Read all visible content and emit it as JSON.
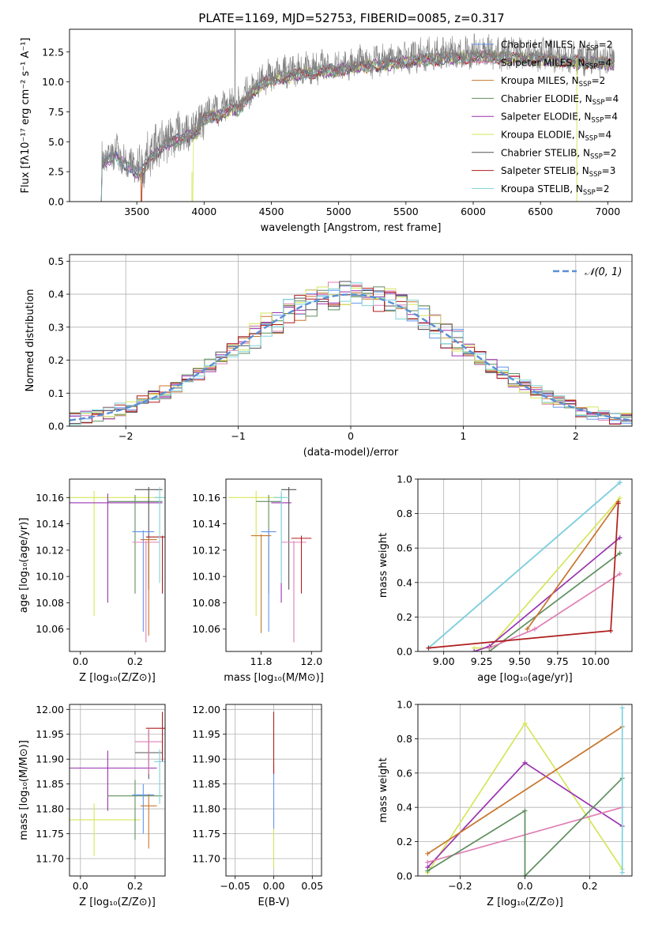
{
  "figure": {
    "title": "PLATE=1169, MJD=52753, FIBERID=0085, z=0.317"
  },
  "colors": {
    "chabrier_miles": "#6495ed",
    "salpeter_miles": "#e07fb5",
    "kroupa_miles": "#c8762e",
    "chabrier_elodie": "#5f8f5f",
    "salpeter_elodie": "#9a32b0",
    "kroupa_elodie": "#d6e65a",
    "chabrier_stelib": "#555555",
    "salpeter_stelib": "#b01c1c",
    "kroupa_stelib": "#7fd3dc",
    "normal": "#5a8fd6"
  },
  "chart_data": [
    {
      "id": "spectrum",
      "type": "line",
      "title": "PLATE=1169, MJD=52753, FIBERID=0085, z=0.317",
      "xlabel": "wavelength [Angstrom, rest frame]",
      "ylabel_base": "Flux [f",
      "ylabel": "Flux [fλ10⁻¹⁷ erg cm⁻² s⁻¹ A⁻¹]",
      "xlim": [
        3000,
        7180
      ],
      "ylim": [
        0,
        14.4
      ],
      "xticks": [
        3500,
        4000,
        4500,
        5000,
        5500,
        6000,
        6500,
        7000
      ],
      "yticks": [
        0.0,
        2.5,
        5.0,
        7.5,
        10.0,
        12.5
      ],
      "ytick_labels": [
        "0.0",
        "2.5",
        "5.0",
        "7.5",
        "10.0",
        "12.5"
      ],
      "grid": false,
      "legend_position": "top-right",
      "observed_envelope": {
        "x": [
          3230,
          3300,
          3350,
          3400,
          3450,
          3500,
          3550,
          3600,
          3650,
          3700,
          3750,
          3800,
          3850,
          3900,
          3950,
          4000,
          4050,
          4100,
          4150,
          4200,
          4250,
          4300,
          4350,
          4400,
          4450,
          4500,
          4600,
          4700,
          4800,
          4900,
          5000,
          5100,
          5200,
          5300,
          5400,
          5500,
          5600,
          5700,
          5800,
          5900,
          6000,
          6100,
          6200,
          6300,
          6400,
          6500,
          6600,
          6700,
          6800,
          6900,
          7000,
          7050
        ],
        "y": [
          3.5,
          4.0,
          4.2,
          3.5,
          3.2,
          2.8,
          3.0,
          4.2,
          4.5,
          5.0,
          5.3,
          5.5,
          5.8,
          6.0,
          6.2,
          7.3,
          7.6,
          7.5,
          7.8,
          8.2,
          8.0,
          8.8,
          9.4,
          10.0,
          10.3,
          10.6,
          10.8,
          11.0,
          11.2,
          11.3,
          11.4,
          11.6,
          11.7,
          11.8,
          11.9,
          12.1,
          12.2,
          12.3,
          12.4,
          12.4,
          12.5,
          12.5,
          12.4,
          12.4,
          12.3,
          12.3,
          12.2,
          12.1,
          12.0,
          12.0,
          11.9,
          11.8
        ]
      },
      "model_series": [
        {
          "name": "Chabrier MILES, N",
          "sub": "SSP",
          "eq": "=2",
          "color": "#6495ed"
        },
        {
          "name": "Salpeter MILES, N",
          "sub": "SSP",
          "eq": "=4",
          "color": "#e07fb5"
        },
        {
          "name": "Kroupa MILES, N",
          "sub": "SSP",
          "eq": "=2",
          "color": "#c8762e"
        },
        {
          "name": "Chabrier ELODIE, N",
          "sub": "SSP",
          "eq": "=4",
          "color": "#5f8f5f"
        },
        {
          "name": "Salpeter ELODIE, N",
          "sub": "SSP",
          "eq": "=4",
          "color": "#9a32b0"
        },
        {
          "name": "Kroupa ELODIE, N",
          "sub": "SSP",
          "eq": "=4",
          "color": "#d6e65a"
        },
        {
          "name": "Chabrier STELIB, N",
          "sub": "SSP",
          "eq": "=2",
          "color": "#555555"
        },
        {
          "name": "Salpeter STELIB, N",
          "sub": "SSP",
          "eq": "=3",
          "color": "#b01c1c"
        },
        {
          "name": "Kroupa STELIB, N",
          "sub": "SSP",
          "eq": "=2",
          "color": "#7fd3dc"
        }
      ]
    },
    {
      "id": "residuals",
      "type": "step",
      "xlabel": "(data-model)/error",
      "ylabel": "Normed distribution",
      "xlim": [
        -2.5,
        2.5
      ],
      "ylim": [
        0,
        0.52
      ],
      "xticks": [
        -2,
        -1,
        0,
        1,
        2
      ],
      "xtick_labels": [
        "−2",
        "−1",
        "0",
        "1",
        "2"
      ],
      "yticks": [
        0.0,
        0.1,
        0.2,
        0.3,
        0.4,
        0.5
      ],
      "ytick_labels": [
        "0.0",
        "0.1",
        "0.2",
        "0.3",
        "0.4",
        "0.5"
      ],
      "grid": true,
      "legend_position": "top-right",
      "bin_width": 0.1,
      "normal_curve": {
        "name": "𝒩(0, 1)",
        "mean": 0,
        "sigma": 1
      }
    },
    {
      "id": "age_vs_Z",
      "type": "errorbar",
      "xlabel": "Z [log₁₀(Z/Z⊙)]",
      "ylabel": "age  [log₁₀(age/yr)]",
      "xlim": [
        -0.04,
        0.31
      ],
      "ylim": [
        10.043,
        10.174
      ],
      "xticks": [
        0.0,
        0.2
      ],
      "xtick_labels": [
        "0.0",
        "0.2"
      ],
      "yticks": [
        10.06,
        10.08,
        10.1,
        10.12,
        10.14,
        10.16
      ],
      "ytick_labels": [
        "10.06",
        "10.08",
        "10.10",
        "10.12",
        "10.14",
        "10.16"
      ],
      "grid": false,
      "points": [
        {
          "series": "Kroupa ELODIE",
          "x": 0.05,
          "xerr": 0.33,
          "y": 10.16,
          "ylo": 10.07,
          "yhi": 10.165
        },
        {
          "series": "Salpeter ELODIE",
          "x": 0.1,
          "xerr": 0.2,
          "y": 10.156,
          "ylo": 10.08,
          "yhi": 10.163
        },
        {
          "series": "Chabrier ELODIE",
          "x": 0.2,
          "xerr": 0.1,
          "y": 10.157,
          "ylo": 10.087,
          "yhi": 10.162
        },
        {
          "series": "Chabrier STELIB",
          "x": 0.25,
          "xerr": 0.05,
          "y": 10.166,
          "ylo": 10.09,
          "yhi": 10.168
        },
        {
          "series": "Chabrier MILES",
          "x": 0.23,
          "xerr": 0.04,
          "y": 10.134,
          "ylo": 10.058,
          "yhi": 10.135
        },
        {
          "series": "Salpeter MILES",
          "x": 0.24,
          "xerr": 0.05,
          "y": 10.126,
          "ylo": 10.05,
          "yhi": 10.127
        },
        {
          "series": "Kroupa MILES",
          "x": 0.25,
          "xerr": 0.03,
          "y": 10.128,
          "ylo": 10.055,
          "yhi": 10.129
        },
        {
          "series": "Salpeter STELIB",
          "x": 0.3,
          "xerr": 0.06,
          "y": 10.13,
          "ylo": 10.087,
          "yhi": 10.131
        },
        {
          "series": "Kroupa STELIB",
          "x": 0.29,
          "xerr": 0.02,
          "y": 10.16,
          "ylo": 10.095,
          "yhi": 10.168
        }
      ]
    },
    {
      "id": "age_vs_mass",
      "type": "errorbar",
      "xlabel": "mass [log₁₀(M/M⊙)]",
      "ylabel": "",
      "xlim": [
        11.66,
        12.04
      ],
      "ylim": [
        10.043,
        10.174
      ],
      "xticks": [
        11.8,
        12.0
      ],
      "xtick_labels": [
        "11.8",
        "12.0"
      ],
      "yticks": [
        10.06,
        10.08,
        10.1,
        10.12,
        10.14,
        10.16
      ],
      "ytick_labels": [
        "10.06",
        "10.08",
        "10.10",
        "10.12",
        "10.14",
        "10.16"
      ],
      "grid": false,
      "points": [
        {
          "series": "Kroupa ELODIE",
          "x": 11.78,
          "xerr": 0.11,
          "y": 10.16,
          "ylo": 10.07,
          "yhi": 10.165
        },
        {
          "series": "Salpeter ELODIE",
          "x": 11.88,
          "xerr": 0.04,
          "y": 10.156,
          "ylo": 10.08,
          "yhi": 10.163
        },
        {
          "series": "Chabrier ELODIE",
          "x": 11.83,
          "xerr": 0.05,
          "y": 10.157,
          "ylo": 10.087,
          "yhi": 10.162
        },
        {
          "series": "Chabrier STELIB",
          "x": 11.91,
          "xerr": 0.03,
          "y": 10.166,
          "ylo": 10.09,
          "yhi": 10.168
        },
        {
          "series": "Chabrier MILES",
          "x": 11.83,
          "xerr": 0.03,
          "y": 10.134,
          "ylo": 10.058,
          "yhi": 10.135
        },
        {
          "series": "Salpeter MILES",
          "x": 11.93,
          "xerr": 0.05,
          "y": 10.126,
          "ylo": 10.05,
          "yhi": 10.127
        },
        {
          "series": "Kroupa MILES",
          "x": 11.8,
          "xerr": 0.04,
          "y": 10.131,
          "ylo": 10.057,
          "yhi": 10.132
        },
        {
          "series": "Salpeter STELIB",
          "x": 11.96,
          "xerr": 0.04,
          "y": 10.129,
          "ylo": 10.087,
          "yhi": 10.131
        },
        {
          "series": "Kroupa STELIB",
          "x": 11.88,
          "xerr": 0.03,
          "y": 10.16,
          "ylo": 10.095,
          "yhi": 10.165
        }
      ]
    },
    {
      "id": "weight_vs_age",
      "type": "line",
      "xlabel": "age  [log₁₀(age/yr)]",
      "ylabel": "mass weight",
      "xlim": [
        8.83,
        10.24
      ],
      "ylim": [
        0,
        1.0
      ],
      "xticks": [
        9.0,
        9.25,
        9.5,
        9.75,
        10.0
      ],
      "xtick_labels": [
        "9.00",
        "9.25",
        "9.50",
        "9.75",
        "10.00"
      ],
      "yticks": [
        0.0,
        0.2,
        0.4,
        0.6,
        0.8,
        1.0
      ],
      "ytick_labels": [
        "0.0",
        "0.2",
        "0.4",
        "0.6",
        "0.8",
        "1.0"
      ],
      "grid": true,
      "series": [
        {
          "name": "Chabrier MILES",
          "x": [
            8.9,
            10.16
          ],
          "y": [
            0.02,
            0.98
          ]
        },
        {
          "name": "Kroupa STELIB",
          "x": [
            8.9,
            10.16
          ],
          "y": [
            0.02,
            0.98
          ]
        },
        {
          "name": "Kroupa ELODIE",
          "x": [
            9.2,
            9.3,
            10.16
          ],
          "y": [
            0.02,
            0.02,
            0.89
          ]
        },
        {
          "name": "Salpeter ELODIE",
          "x": [
            9.2,
            9.3,
            10.16
          ],
          "y": [
            0.0,
            0.03,
            0.66
          ]
        },
        {
          "name": "Chabrier ELODIE",
          "x": [
            9.3,
            10.16
          ],
          "y": [
            0.0,
            0.57
          ]
        },
        {
          "name": "Salpeter MILES",
          "x": [
            9.3,
            9.6,
            10.16
          ],
          "y": [
            0.02,
            0.13,
            0.45
          ]
        },
        {
          "name": "Kroupa MILES",
          "x": [
            9.55,
            10.15
          ],
          "y": [
            0.13,
            0.87
          ]
        },
        {
          "name": "Salpeter STELIB",
          "x": [
            8.9,
            10.1,
            10.15
          ],
          "y": [
            0.02,
            0.12,
            0.86
          ]
        }
      ]
    },
    {
      "id": "mass_vs_Z",
      "type": "errorbar",
      "xlabel": "Z [log₁₀(Z/Z⊙)]",
      "ylabel": "mass [log₁₀(M/M⊙)]",
      "xlim": [
        -0.04,
        0.31
      ],
      "ylim": [
        11.665,
        12.01
      ],
      "xticks": [
        0.0,
        0.2
      ],
      "xtick_labels": [
        "0.0",
        "0.2"
      ],
      "yticks": [
        11.7,
        11.75,
        11.8,
        11.85,
        11.9,
        11.95,
        12.0
      ],
      "ytick_labels": [
        "11.70",
        "11.75",
        "11.80",
        "11.85",
        "11.90",
        "11.95",
        "12.00"
      ],
      "grid": true,
      "points": [
        {
          "series": "Kroupa ELODIE",
          "x": 0.05,
          "xerr": 0.17,
          "y": 11.778,
          "ylo": 11.705,
          "yhi": 11.811
        },
        {
          "series": "Salpeter ELODIE",
          "x": 0.1,
          "xerr": 0.18,
          "y": 11.882,
          "ylo": 11.796,
          "yhi": 11.917
        },
        {
          "series": "Chabrier ELODIE",
          "x": 0.2,
          "xerr": 0.1,
          "y": 11.826,
          "ylo": 11.738,
          "yhi": 11.858
        },
        {
          "series": "Chabrier STELIB",
          "x": 0.25,
          "xerr": 0.05,
          "y": 11.913,
          "ylo": 11.86,
          "yhi": 11.96
        },
        {
          "series": "Chabrier MILES",
          "x": 0.23,
          "xerr": 0.04,
          "y": 11.828,
          "ylo": 11.75,
          "yhi": 11.85
        },
        {
          "series": "Salpeter MILES",
          "x": 0.25,
          "xerr": 0.05,
          "y": 11.935,
          "ylo": 11.87,
          "yhi": 11.96
        },
        {
          "series": "Kroupa MILES",
          "x": 0.25,
          "xerr": 0.03,
          "y": 11.806,
          "ylo": 11.72,
          "yhi": 11.83
        },
        {
          "series": "Salpeter STELIB",
          "x": 0.3,
          "xerr": 0.06,
          "y": 11.962,
          "ylo": 11.895,
          "yhi": 11.995
        },
        {
          "series": "Kroupa STELIB",
          "x": 0.29,
          "xerr": 0.02,
          "y": 11.895,
          "ylo": 11.81,
          "yhi": 11.92
        }
      ]
    },
    {
      "id": "mass_vs_ebv",
      "type": "errorbar",
      "xlabel": "E(B-V)",
      "ylabel": "",
      "xlim": [
        -0.062,
        0.062
      ],
      "ylim": [
        11.665,
        12.01
      ],
      "xticks": [
        -0.05,
        0.0,
        0.05
      ],
      "xtick_labels": [
        "−0.05",
        "0.00",
        "0.05"
      ],
      "yticks": [
        11.7,
        11.75,
        11.8,
        11.85,
        11.9,
        11.95,
        12.0
      ],
      "ytick_labels": [
        "11.70",
        "11.75",
        "11.80",
        "11.85",
        "11.90",
        "11.95",
        "12.00"
      ],
      "grid": true,
      "points": [
        {
          "series": "Kroupa ELODIE",
          "x": 0.0,
          "xerr": 0.0,
          "y": 11.778,
          "ylo": 11.68,
          "yhi": 11.811
        },
        {
          "series": "Chabrier MILES",
          "x": 0.0,
          "xerr": 0.0,
          "y": 11.828,
          "ylo": 11.76,
          "yhi": 11.89
        },
        {
          "series": "Salpeter STELIB",
          "x": 0.0,
          "xerr": 0.0,
          "y": 11.962,
          "ylo": 11.87,
          "yhi": 11.995
        }
      ]
    },
    {
      "id": "weight_vs_Z",
      "type": "line",
      "xlabel": "Z [log₁₀(Z/Z⊙)]",
      "ylabel": "mass weight",
      "xlim": [
        -0.33,
        0.33
      ],
      "ylim": [
        0,
        1.0
      ],
      "xticks": [
        -0.2,
        0.0,
        0.2
      ],
      "xtick_labels": [
        "−0.2",
        "0.0",
        "0.2"
      ],
      "yticks": [
        0.0,
        0.2,
        0.4,
        0.6,
        0.8,
        1.0
      ],
      "ytick_labels": [
        "0.0",
        "0.2",
        "0.4",
        "0.6",
        "0.8",
        "1.0"
      ],
      "grid": true,
      "series": [
        {
          "name": "Kroupa ELODIE",
          "x": [
            -0.3,
            0.0,
            0.3
          ],
          "y": [
            0.02,
            0.89,
            0.04
          ]
        },
        {
          "name": "Salpeter ELODIE",
          "x": [
            -0.3,
            0.0,
            0.3
          ],
          "y": [
            0.05,
            0.66,
            0.29
          ]
        },
        {
          "name": "Kroupa MILES",
          "x": [
            -0.3,
            0.3
          ],
          "y": [
            0.13,
            0.87
          ]
        },
        {
          "name": "Salpeter MILES",
          "x": [
            -0.3,
            0.3
          ],
          "y": [
            0.08,
            0.4
          ]
        },
        {
          "name": "Chabrier ELODIE",
          "x": [
            -0.3,
            0.0,
            0.0,
            0.3
          ],
          "y": [
            0.03,
            0.38,
            0.0,
            0.57
          ]
        },
        {
          "name": "Kroupa STELIB",
          "x": [
            0.3,
            0.3
          ],
          "y": [
            0.02,
            0.98
          ]
        }
      ]
    }
  ]
}
